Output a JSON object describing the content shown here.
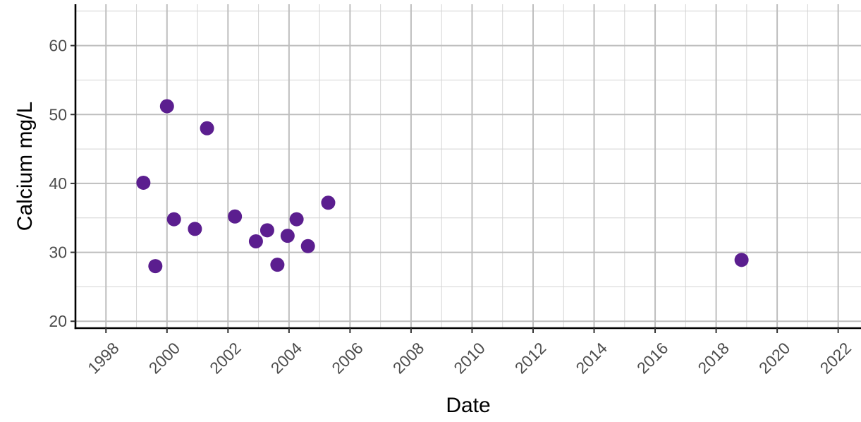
{
  "chart_data": {
    "type": "scatter",
    "title": "",
    "xlabel": "Date",
    "ylabel": "Calcium mg/L",
    "x_axis_type": "date",
    "xlim": [
      "1997-01-01",
      "2022-10-01"
    ],
    "ylim": [
      19,
      66
    ],
    "x_ticks": [
      "1998",
      "2000",
      "2002",
      "2004",
      "2006",
      "2008",
      "2010",
      "2012",
      "2014",
      "2016",
      "2018",
      "2020",
      "2022"
    ],
    "y_ticks": [
      20,
      30,
      40,
      50,
      60
    ],
    "x_tick_label_angle": -45,
    "grid": true,
    "legend": "none",
    "marker_color": "#5b1e8f",
    "series": [
      {
        "points": [
          {
            "x": "1999-03-25",
            "y": 40.1
          },
          {
            "x": "1999-08-15",
            "y": 28.0
          },
          {
            "x": "2000-01-01",
            "y": 51.2
          },
          {
            "x": "2000-03-25",
            "y": 34.8
          },
          {
            "x": "2000-12-01",
            "y": 33.4
          },
          {
            "x": "2001-04-25",
            "y": 48.0
          },
          {
            "x": "2002-03-25",
            "y": 35.2
          },
          {
            "x": "2002-12-01",
            "y": 31.6
          },
          {
            "x": "2003-04-15",
            "y": 33.2
          },
          {
            "x": "2003-08-15",
            "y": 28.2
          },
          {
            "x": "2003-12-15",
            "y": 32.4
          },
          {
            "x": "2004-04-01",
            "y": 34.8
          },
          {
            "x": "2004-08-15",
            "y": 30.9
          },
          {
            "x": "2005-04-15",
            "y": 37.2
          },
          {
            "x": "2018-11-01",
            "y": 28.9
          }
        ]
      }
    ]
  }
}
